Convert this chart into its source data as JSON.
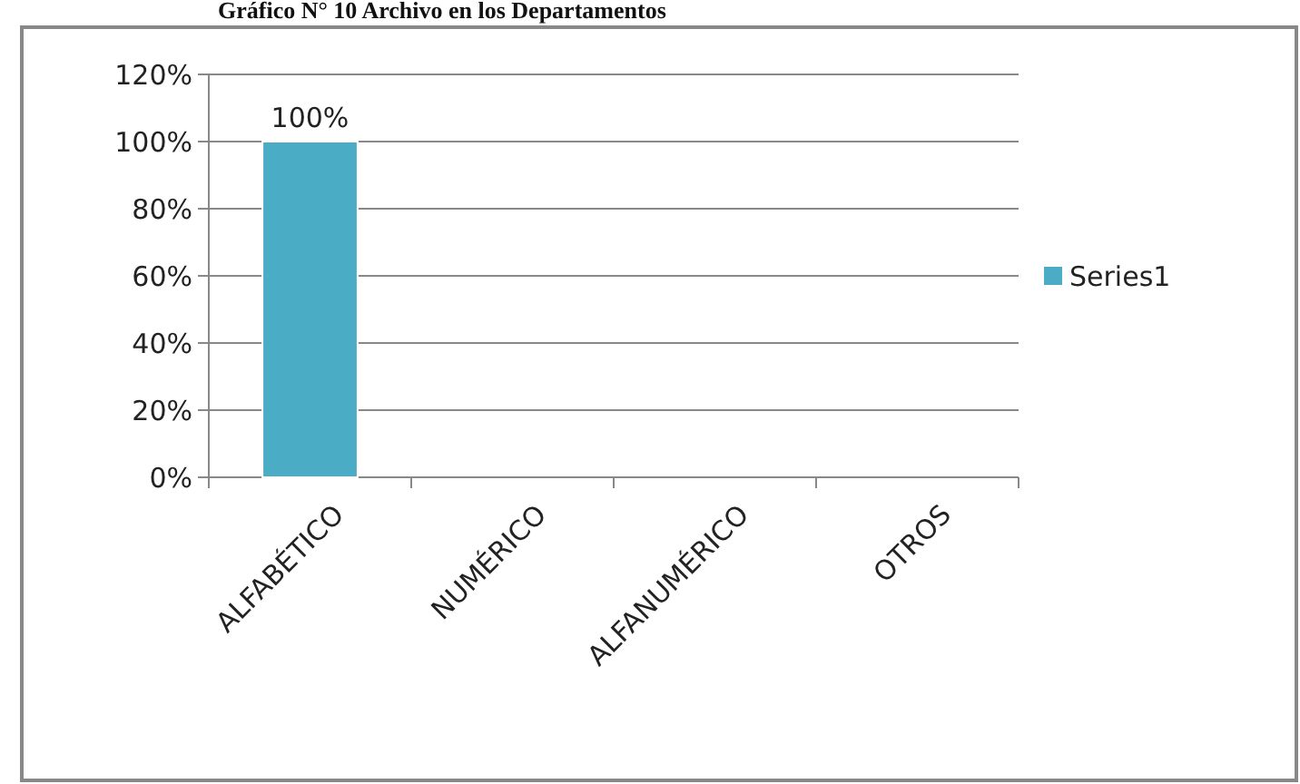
{
  "chart_data": {
    "type": "bar",
    "title": "Gráfico N° 10 Archivo en los Departamentos",
    "categories": [
      "ALFABÉTICO",
      "NUMÉRICO",
      "ALFANUMÉRICO",
      "OTROS"
    ],
    "series": [
      {
        "name": "Series1",
        "color": "#4bacc6",
        "values": [
          100,
          0,
          0,
          0
        ],
        "value_labels": [
          "100%",
          null,
          null,
          null
        ]
      }
    ],
    "ylim": [
      0,
      120
    ],
    "yticks": [
      {
        "value": 0,
        "label": "0%"
      },
      {
        "value": 20,
        "label": "20%"
      },
      {
        "value": 40,
        "label": "40%"
      },
      {
        "value": 60,
        "label": "60%"
      },
      {
        "value": 80,
        "label": "80%"
      },
      {
        "value": 100,
        "label": "100%"
      },
      {
        "value": 120,
        "label": "120%"
      }
    ],
    "grid": "y",
    "legend": "right"
  }
}
